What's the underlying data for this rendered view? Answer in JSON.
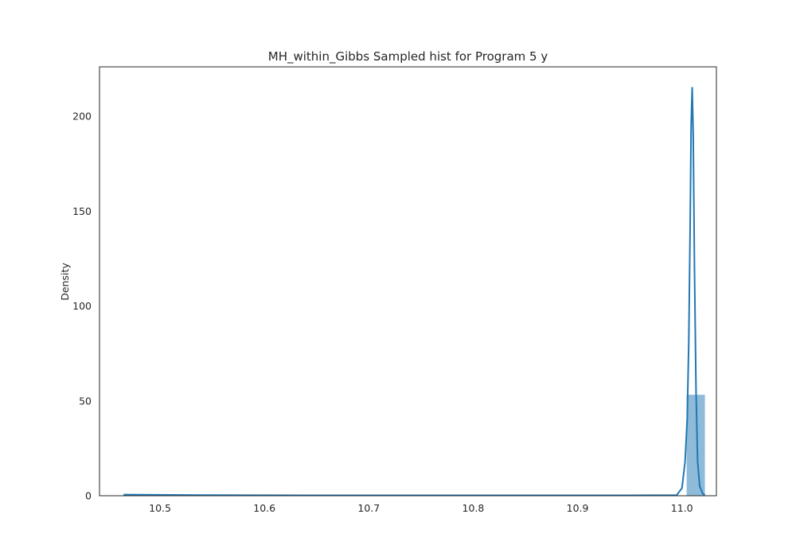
{
  "chart_data": {
    "type": "bar",
    "title": "MH_within_Gibbs Sampled hist for Program 5 y",
    "xlabel": "",
    "ylabel": "Density",
    "xlim": [
      10.442,
      11.033
    ],
    "ylim": [
      0,
      226
    ],
    "x_ticks": [
      10.5,
      10.6,
      10.7,
      10.8,
      10.9,
      11.0
    ],
    "x_tick_labels": [
      "10.5",
      "10.6",
      "10.7",
      "10.8",
      "10.9",
      "11.0"
    ],
    "y_ticks": [
      0,
      50,
      100,
      150,
      200
    ],
    "y_tick_labels": [
      "0",
      "50",
      "100",
      "150",
      "200"
    ],
    "grid": false,
    "bars": [
      {
        "x0": 11.0045,
        "x1": 11.022,
        "value": 53.2
      }
    ],
    "kde_series": {
      "name": "",
      "x": [
        10.465,
        10.55,
        10.65,
        10.75,
        10.85,
        10.95,
        10.995,
        11.0,
        11.003,
        11.005,
        11.0065,
        11.0078,
        11.0088,
        11.0098,
        11.0108,
        11.012,
        11.0135,
        11.015,
        11.017,
        11.02,
        11.022
      ],
      "y": [
        0.6,
        0.3,
        0.2,
        0.2,
        0.2,
        0.2,
        0.3,
        4,
        18,
        40,
        80,
        140,
        195,
        215,
        190,
        120,
        55,
        18,
        5,
        1,
        0.4
      ]
    },
    "colors": {
      "bar_fill": "#1f77b4",
      "bar_opacity": 0.5,
      "kde_line": "#1f77b4",
      "axis": "#262626",
      "text": "#262626"
    }
  }
}
